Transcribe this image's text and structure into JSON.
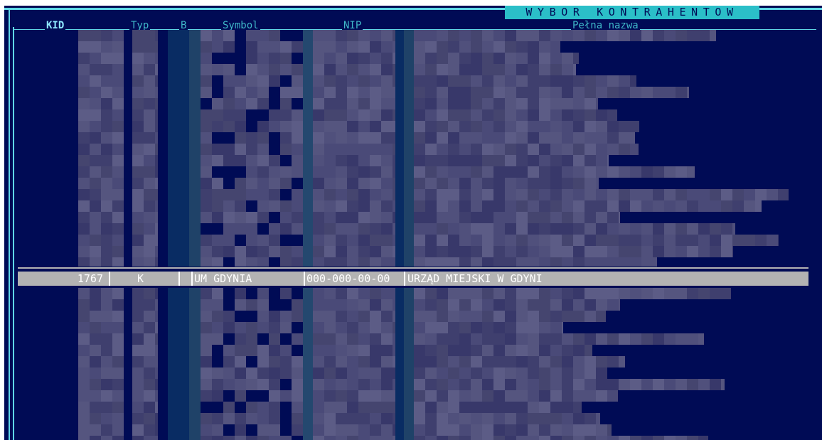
{
  "window": {
    "title": "WYBOR KONTRAHENTOW"
  },
  "columns": {
    "kid": "KID",
    "typ": "Typ",
    "b": "B",
    "symbol": "Symbol",
    "nip": "NIP",
    "nazwa": "Pełna nazwa"
  },
  "selected_row": {
    "kid": "1767",
    "typ": "K",
    "b": "",
    "symbol": "UM GDYNIA",
    "nip": "000-000-00-00",
    "nazwa": "URZĄD MIEJSKI W GDYNI"
  },
  "colors": {
    "background": "#000b55",
    "frame": "#5fd7e6",
    "title_bg": "#2bbfc8",
    "highlight": "#b3b3b3",
    "obscured": "#4a4a78"
  }
}
